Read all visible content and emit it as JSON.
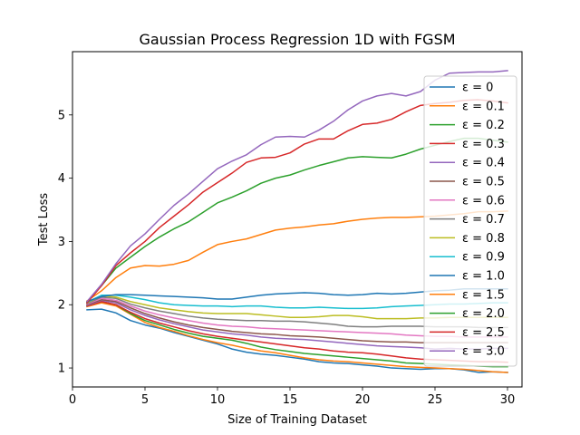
{
  "chart_data": {
    "type": "line",
    "title": "Gaussian Process Regression 1D with FGSM",
    "xlabel": "Size of Training Dataset",
    "ylabel": "Test Loss",
    "xlim": [
      0,
      31
    ],
    "ylim": [
      0.7,
      6.0
    ],
    "xticks": [
      0,
      5,
      10,
      15,
      20,
      25,
      30
    ],
    "yticks": [
      1,
      2,
      3,
      4,
      5
    ],
    "grid": false,
    "legend_position": "right",
    "x": [
      1,
      2,
      3,
      4,
      5,
      6,
      7,
      8,
      9,
      10,
      11,
      12,
      13,
      14,
      15,
      16,
      17,
      18,
      19,
      20,
      21,
      22,
      23,
      24,
      25,
      26,
      27,
      28,
      29,
      30
    ],
    "series": [
      {
        "name": "ε = 0",
        "color": "#1f77b4",
        "values": [
          1.92,
          1.93,
          1.87,
          1.75,
          1.68,
          1.63,
          1.56,
          1.5,
          1.44,
          1.38,
          1.3,
          1.25,
          1.22,
          1.2,
          1.17,
          1.14,
          1.1,
          1.08,
          1.07,
          1.05,
          1.03,
          1.0,
          0.99,
          0.98,
          0.99,
          0.99,
          0.97,
          0.93,
          0.94,
          0.93
        ]
      },
      {
        "name": "ε = 0.1",
        "color": "#ff7f0e",
        "values": [
          1.97,
          2.03,
          1.98,
          1.85,
          1.72,
          1.64,
          1.58,
          1.51,
          1.45,
          1.4,
          1.36,
          1.31,
          1.27,
          1.24,
          1.2,
          1.16,
          1.13,
          1.11,
          1.1,
          1.08,
          1.06,
          1.04,
          1.02,
          1.01,
          1.0,
          0.99,
          0.98,
          0.96,
          0.94,
          0.93
        ]
      },
      {
        "name": "ε = 0.2",
        "color": "#2ca02c",
        "values": [
          1.98,
          2.05,
          2.0,
          1.86,
          1.75,
          1.68,
          1.61,
          1.55,
          1.5,
          1.47,
          1.44,
          1.39,
          1.33,
          1.29,
          1.26,
          1.23,
          1.21,
          1.19,
          1.17,
          1.15,
          1.13,
          1.11,
          1.08,
          1.07,
          1.06,
          1.05,
          1.04,
          1.03,
          1.02,
          1.02
        ]
      },
      {
        "name": "ε = 0.3",
        "color": "#d62728",
        "values": [
          1.98,
          2.05,
          2.0,
          1.88,
          1.78,
          1.71,
          1.65,
          1.59,
          1.54,
          1.5,
          1.47,
          1.44,
          1.41,
          1.38,
          1.35,
          1.32,
          1.3,
          1.27,
          1.25,
          1.24,
          1.22,
          1.19,
          1.16,
          1.14,
          1.13,
          1.12,
          1.11,
          1.1,
          1.1,
          1.09
        ]
      },
      {
        "name": "ε = 0.4",
        "color": "#9467bd",
        "values": [
          1.99,
          2.07,
          2.03,
          1.92,
          1.83,
          1.76,
          1.7,
          1.65,
          1.6,
          1.57,
          1.54,
          1.52,
          1.49,
          1.47,
          1.46,
          1.45,
          1.43,
          1.41,
          1.39,
          1.37,
          1.35,
          1.34,
          1.33,
          1.32,
          1.3,
          1.31,
          1.3,
          1.3,
          1.31,
          1.31
        ]
      },
      {
        "name": "ε = 0.5",
        "color": "#8c564b",
        "values": [
          2.0,
          2.08,
          2.05,
          1.95,
          1.86,
          1.79,
          1.73,
          1.68,
          1.64,
          1.61,
          1.58,
          1.56,
          1.54,
          1.53,
          1.51,
          1.5,
          1.49,
          1.47,
          1.45,
          1.43,
          1.42,
          1.41,
          1.41,
          1.4,
          1.4,
          1.4,
          1.4,
          1.4,
          1.4,
          1.4
        ]
      },
      {
        "name": "ε = 0.6",
        "color": "#e377c2",
        "values": [
          2.01,
          2.1,
          2.07,
          1.98,
          1.9,
          1.84,
          1.79,
          1.75,
          1.71,
          1.68,
          1.66,
          1.65,
          1.63,
          1.62,
          1.61,
          1.6,
          1.59,
          1.58,
          1.57,
          1.56,
          1.55,
          1.54,
          1.52,
          1.51,
          1.5,
          1.5,
          1.49,
          1.49,
          1.49,
          1.49
        ]
      },
      {
        "name": "ε = 0.7",
        "color": "#7f7f7f",
        "values": [
          2.02,
          2.12,
          2.1,
          2.01,
          1.95,
          1.9,
          1.86,
          1.82,
          1.79,
          1.77,
          1.76,
          1.75,
          1.75,
          1.74,
          1.74,
          1.73,
          1.71,
          1.69,
          1.66,
          1.65,
          1.65,
          1.66,
          1.66,
          1.66,
          1.65,
          1.65,
          1.65,
          1.64,
          1.64,
          1.64
        ]
      },
      {
        "name": "ε = 0.8",
        "color": "#bcbd22",
        "values": [
          2.03,
          2.14,
          2.12,
          2.05,
          2.0,
          1.95,
          1.92,
          1.89,
          1.87,
          1.86,
          1.86,
          1.86,
          1.84,
          1.82,
          1.8,
          1.8,
          1.81,
          1.83,
          1.83,
          1.81,
          1.78,
          1.78,
          1.78,
          1.79,
          1.79,
          1.8,
          1.8,
          1.8,
          1.8,
          1.8
        ]
      },
      {
        "name": "ε = 0.9",
        "color": "#17becf",
        "values": [
          2.04,
          2.15,
          2.15,
          2.12,
          2.08,
          2.03,
          2.0,
          1.99,
          1.98,
          1.98,
          1.97,
          1.98,
          1.98,
          1.96,
          1.95,
          1.95,
          1.96,
          1.95,
          1.94,
          1.94,
          1.95,
          1.97,
          1.98,
          1.99,
          2.0,
          2.01,
          2.01,
          2.02,
          2.03,
          2.03
        ]
      },
      {
        "name": "ε = 1.0",
        "color": "#1f77b4",
        "values": [
          2.05,
          2.13,
          2.16,
          2.16,
          2.15,
          2.14,
          2.13,
          2.12,
          2.11,
          2.09,
          2.09,
          2.12,
          2.15,
          2.17,
          2.18,
          2.19,
          2.18,
          2.16,
          2.15,
          2.16,
          2.18,
          2.17,
          2.18,
          2.2,
          2.22,
          2.23,
          2.25,
          2.25,
          2.25,
          2.25
        ]
      },
      {
        "name": "ε = 1.5",
        "color": "#ff7f0e",
        "values": [
          2.06,
          2.22,
          2.43,
          2.58,
          2.62,
          2.61,
          2.64,
          2.7,
          2.83,
          2.95,
          3.0,
          3.04,
          3.11,
          3.18,
          3.21,
          3.23,
          3.26,
          3.28,
          3.32,
          3.35,
          3.37,
          3.38,
          3.38,
          3.39,
          3.4,
          3.42,
          3.44,
          3.47,
          3.47,
          3.48
        ]
      },
      {
        "name": "ε = 2.0",
        "color": "#2ca02c",
        "values": [
          2.04,
          2.3,
          2.58,
          2.75,
          2.92,
          3.07,
          3.2,
          3.31,
          3.46,
          3.61,
          3.7,
          3.8,
          3.92,
          4.0,
          4.05,
          4.13,
          4.2,
          4.26,
          4.32,
          4.34,
          4.33,
          4.32,
          4.38,
          4.46,
          4.52,
          4.58,
          4.63,
          4.63,
          4.6,
          4.57
        ]
      },
      {
        "name": "ε = 2.5",
        "color": "#d62728",
        "values": [
          2.03,
          2.3,
          2.62,
          2.82,
          3.0,
          3.22,
          3.4,
          3.58,
          3.78,
          3.93,
          4.08,
          4.25,
          4.32,
          4.33,
          4.4,
          4.54,
          4.62,
          4.62,
          4.75,
          4.85,
          4.87,
          4.93,
          5.05,
          5.15,
          5.18,
          5.2,
          5.23,
          5.24,
          5.22,
          5.19
        ]
      },
      {
        "name": "ε = 3.0",
        "color": "#9467bd",
        "values": [
          2.05,
          2.32,
          2.65,
          2.93,
          3.12,
          3.35,
          3.57,
          3.75,
          3.95,
          4.15,
          4.27,
          4.37,
          4.53,
          4.65,
          4.66,
          4.65,
          4.76,
          4.9,
          5.08,
          5.22,
          5.3,
          5.34,
          5.3,
          5.37,
          5.55,
          5.66,
          5.67,
          5.68,
          5.68,
          5.7
        ]
      }
    ]
  }
}
